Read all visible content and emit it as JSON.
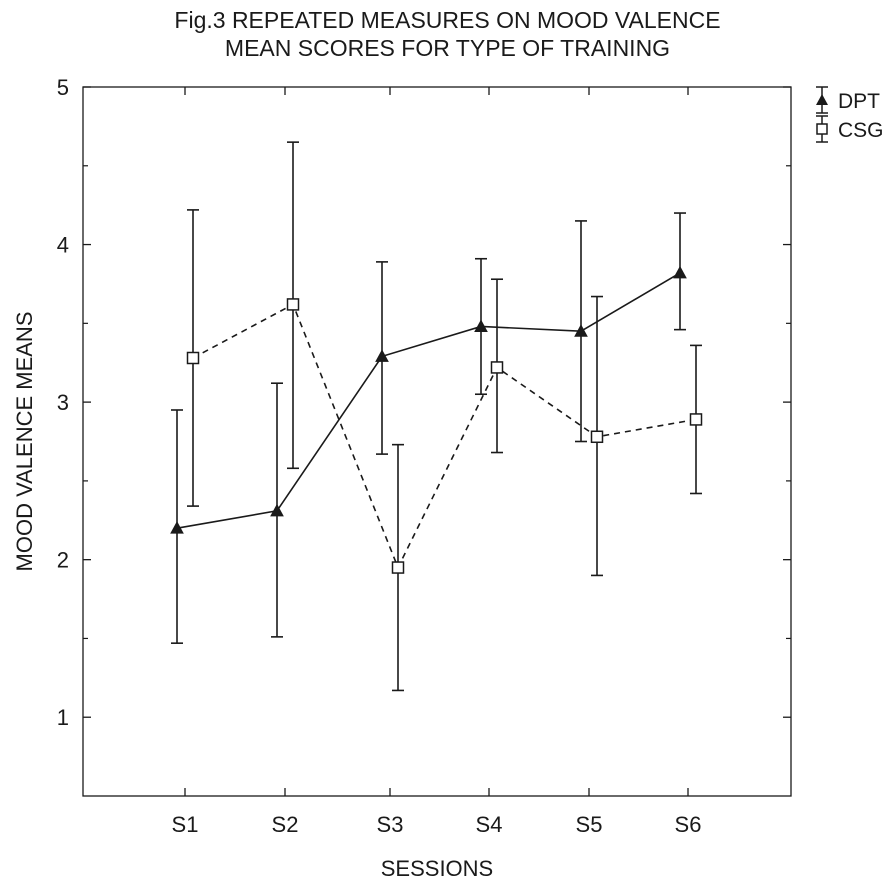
{
  "title_line1": "Fig.3 REPEATED MEASURES ON MOOD VALENCE",
  "title_line2": "MEAN SCORES FOR TYPE OF TRAINING",
  "chart_data": {
    "type": "line",
    "title": "Fig.3 REPEATED MEASURES ON MOOD VALENCE MEAN SCORES FOR TYPE OF TRAINING",
    "xlabel": "SESSIONS",
    "ylabel": "MOOD VALENCE MEANS",
    "categories": [
      "S1",
      "S2",
      "S3",
      "S4",
      "S5",
      "S6"
    ],
    "ylim": [
      0.5,
      5
    ],
    "yticks": [
      1,
      2,
      3,
      4,
      5
    ],
    "grid": false,
    "legend_position": "right",
    "series": [
      {
        "name": "DPT",
        "marker": "filled-triangle",
        "line_style": "solid",
        "values": [
          2.2,
          2.31,
          3.29,
          3.48,
          3.45,
          3.82
        ],
        "err_low": [
          1.47,
          1.51,
          2.67,
          3.05,
          2.75,
          3.46
        ],
        "err_high": [
          2.95,
          3.12,
          3.89,
          3.91,
          4.15,
          4.2
        ]
      },
      {
        "name": "CSG",
        "marker": "open-square",
        "line_style": "dashed",
        "values": [
          3.28,
          3.62,
          1.95,
          3.22,
          2.78,
          2.89
        ],
        "err_low": [
          2.34,
          2.58,
          1.17,
          2.68,
          1.9,
          2.42
        ],
        "err_high": [
          4.22,
          4.65,
          2.73,
          3.78,
          3.67,
          3.36
        ]
      }
    ],
    "colors": {
      "line": "#1a1a1a",
      "background": "#ffffff"
    }
  }
}
